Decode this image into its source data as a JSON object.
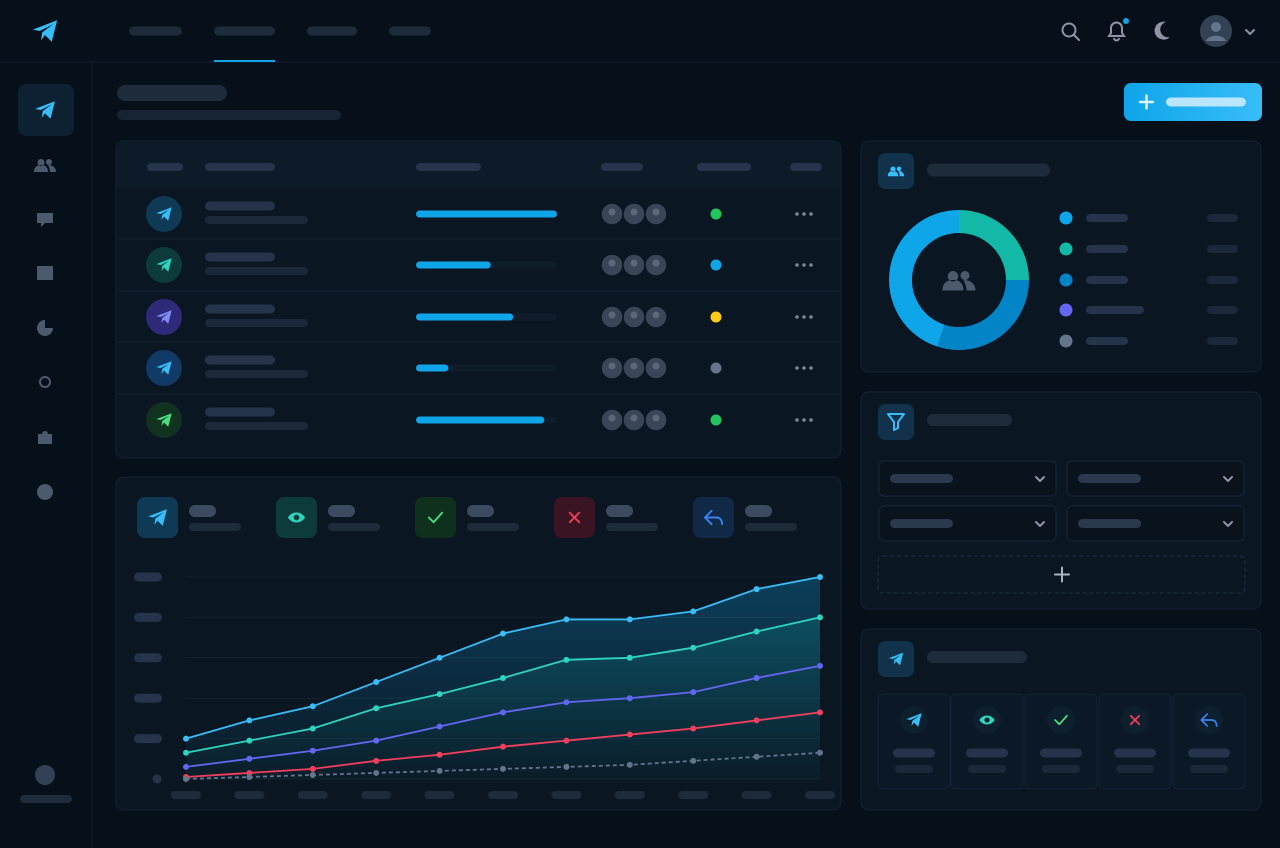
{
  "table": {
    "progress": [
      100,
      53,
      69,
      23,
      91
    ],
    "status_colors": [
      "#22c55e",
      "#0ea5e9",
      "#facc15",
      "#64748b",
      "#22c55e"
    ]
  },
  "donut": {
    "type": "pie",
    "values": [
      25,
      30,
      45
    ],
    "colors": [
      "#14b8a6",
      "#0284c7",
      "#0ea5e9"
    ],
    "legend_colors": [
      "#0ea5e9",
      "#14b8a6",
      "#0284c7",
      "#6366f1",
      "#64748b"
    ]
  },
  "trend": {
    "type": "line",
    "categories": [
      null,
      null,
      null,
      null,
      null,
      null,
      null,
      null,
      null,
      null,
      null
    ],
    "ylim": [
      0,
      100
    ],
    "yticks": [
      20,
      40,
      60,
      80,
      100
    ],
    "grid": true,
    "series": [
      {
        "color": "#38bdf8",
        "values": [
          20,
          29,
          36,
          48,
          60,
          72,
          79,
          79,
          83,
          94,
          100
        ]
      },
      {
        "color": "#2dd4bf",
        "values": [
          13,
          19,
          25,
          35,
          42,
          50,
          59,
          60,
          65,
          73,
          80
        ]
      },
      {
        "color": "#6366f1",
        "values": [
          6,
          10,
          14,
          19,
          26,
          33,
          38,
          40,
          43,
          50,
          56
        ]
      },
      {
        "color": "#f43f5e",
        "values": [
          1,
          3,
          5,
          9,
          12,
          16,
          19,
          22,
          25,
          29,
          33
        ]
      },
      {
        "color": "#64748b",
        "values": [
          0,
          1,
          2,
          3,
          4,
          5,
          6,
          7,
          9,
          11,
          13
        ]
      }
    ]
  }
}
